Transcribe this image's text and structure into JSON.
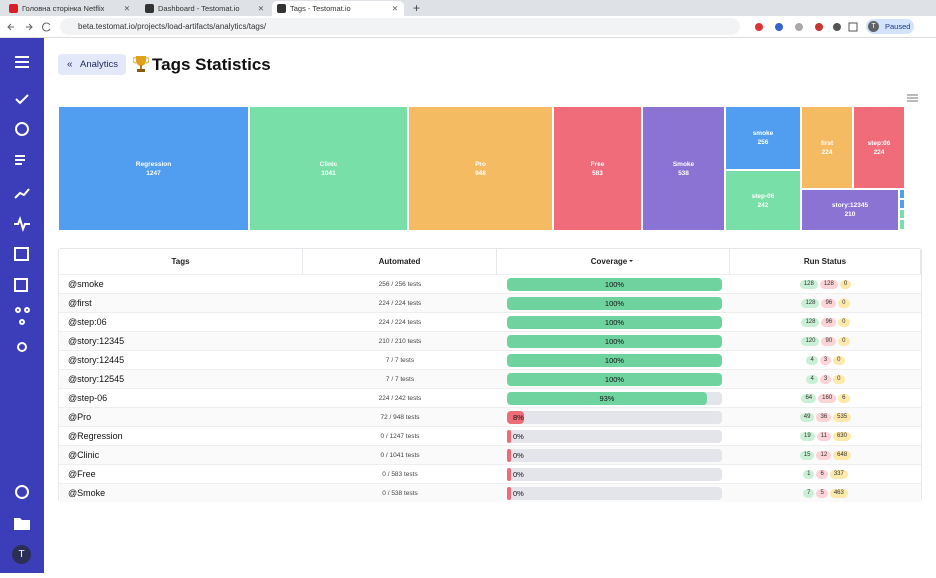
{
  "browser": {
    "tabs": [
      "Головна сторінка Netflix",
      "Dashboard - Testomat.io",
      "Tags - Testomat.io"
    ],
    "url": "beta.testomat.io/projects/load-artifacts/analytics/tags/",
    "profile_status": "Paused",
    "profile_initial": "T"
  },
  "sidebar": {
    "user_initial": "T"
  },
  "header": {
    "back_button": "Analytics",
    "title": "Tags Statistics"
  },
  "chart_data": {
    "type": "treemap",
    "categories": [
      "Regression",
      "Clinic",
      "Pro",
      "Free",
      "Smoke",
      "smoke",
      "step-06",
      "first",
      "step:06",
      "story:12345"
    ],
    "values": [
      1247,
      1041,
      948,
      583,
      538,
      256,
      242,
      224,
      224,
      210
    ],
    "colors": [
      "#519df0",
      "#78dfa8",
      "#f4bb62",
      "#f06c7b",
      "#8a73d3",
      "#519df0",
      "#78dfa8",
      "#f4bb62",
      "#f06c7b",
      "#8a73d3"
    ]
  },
  "table": {
    "columns": [
      "Tags",
      "Automated",
      "Coverage",
      "Run Status"
    ],
    "rows": [
      {
        "tag": "@smoke",
        "automated": "256 / 256 tests",
        "coverage": 100,
        "coverage_label": "100%",
        "run_status": [
          128,
          128,
          0
        ]
      },
      {
        "tag": "@first",
        "automated": "224 / 224 tests",
        "coverage": 100,
        "coverage_label": "100%",
        "run_status": [
          128,
          96,
          0
        ]
      },
      {
        "tag": "@step:06",
        "automated": "224 / 224 tests",
        "coverage": 100,
        "coverage_label": "100%",
        "run_status": [
          128,
          96,
          0
        ]
      },
      {
        "tag": "@story:12345",
        "automated": "210 / 210 tests",
        "coverage": 100,
        "coverage_label": "100%",
        "run_status": [
          120,
          90,
          0
        ]
      },
      {
        "tag": "@story:12445",
        "automated": "7 / 7 tests",
        "coverage": 100,
        "coverage_label": "100%",
        "run_status": [
          4,
          3,
          0
        ]
      },
      {
        "tag": "@story:12545",
        "automated": "7 / 7 tests",
        "coverage": 100,
        "coverage_label": "100%",
        "run_status": [
          4,
          3,
          0
        ]
      },
      {
        "tag": "@step-06",
        "automated": "224 / 242 tests",
        "coverage": 93,
        "coverage_label": "93%",
        "run_status": [
          64,
          160,
          6
        ]
      },
      {
        "tag": "@Pro",
        "automated": "72 / 948 tests",
        "coverage": 8,
        "coverage_label": "8%",
        "run_status": [
          49,
          36,
          535
        ]
      },
      {
        "tag": "@Regression",
        "automated": "0 / 1247 tests",
        "coverage": 0,
        "coverage_label": "0%",
        "run_status": [
          19,
          11,
          630
        ]
      },
      {
        "tag": "@Clinic",
        "automated": "0 / 1041 tests",
        "coverage": 0,
        "coverage_label": "0%",
        "run_status": [
          15,
          12,
          648
        ]
      },
      {
        "tag": "@Free",
        "automated": "0 / 583 tests",
        "coverage": 0,
        "coverage_label": "0%",
        "run_status": [
          1,
          6,
          337
        ]
      },
      {
        "tag": "@Smoke",
        "automated": "0 / 538 tests",
        "coverage": 0,
        "coverage_label": "0%",
        "run_status": [
          7,
          5,
          463
        ]
      }
    ]
  }
}
